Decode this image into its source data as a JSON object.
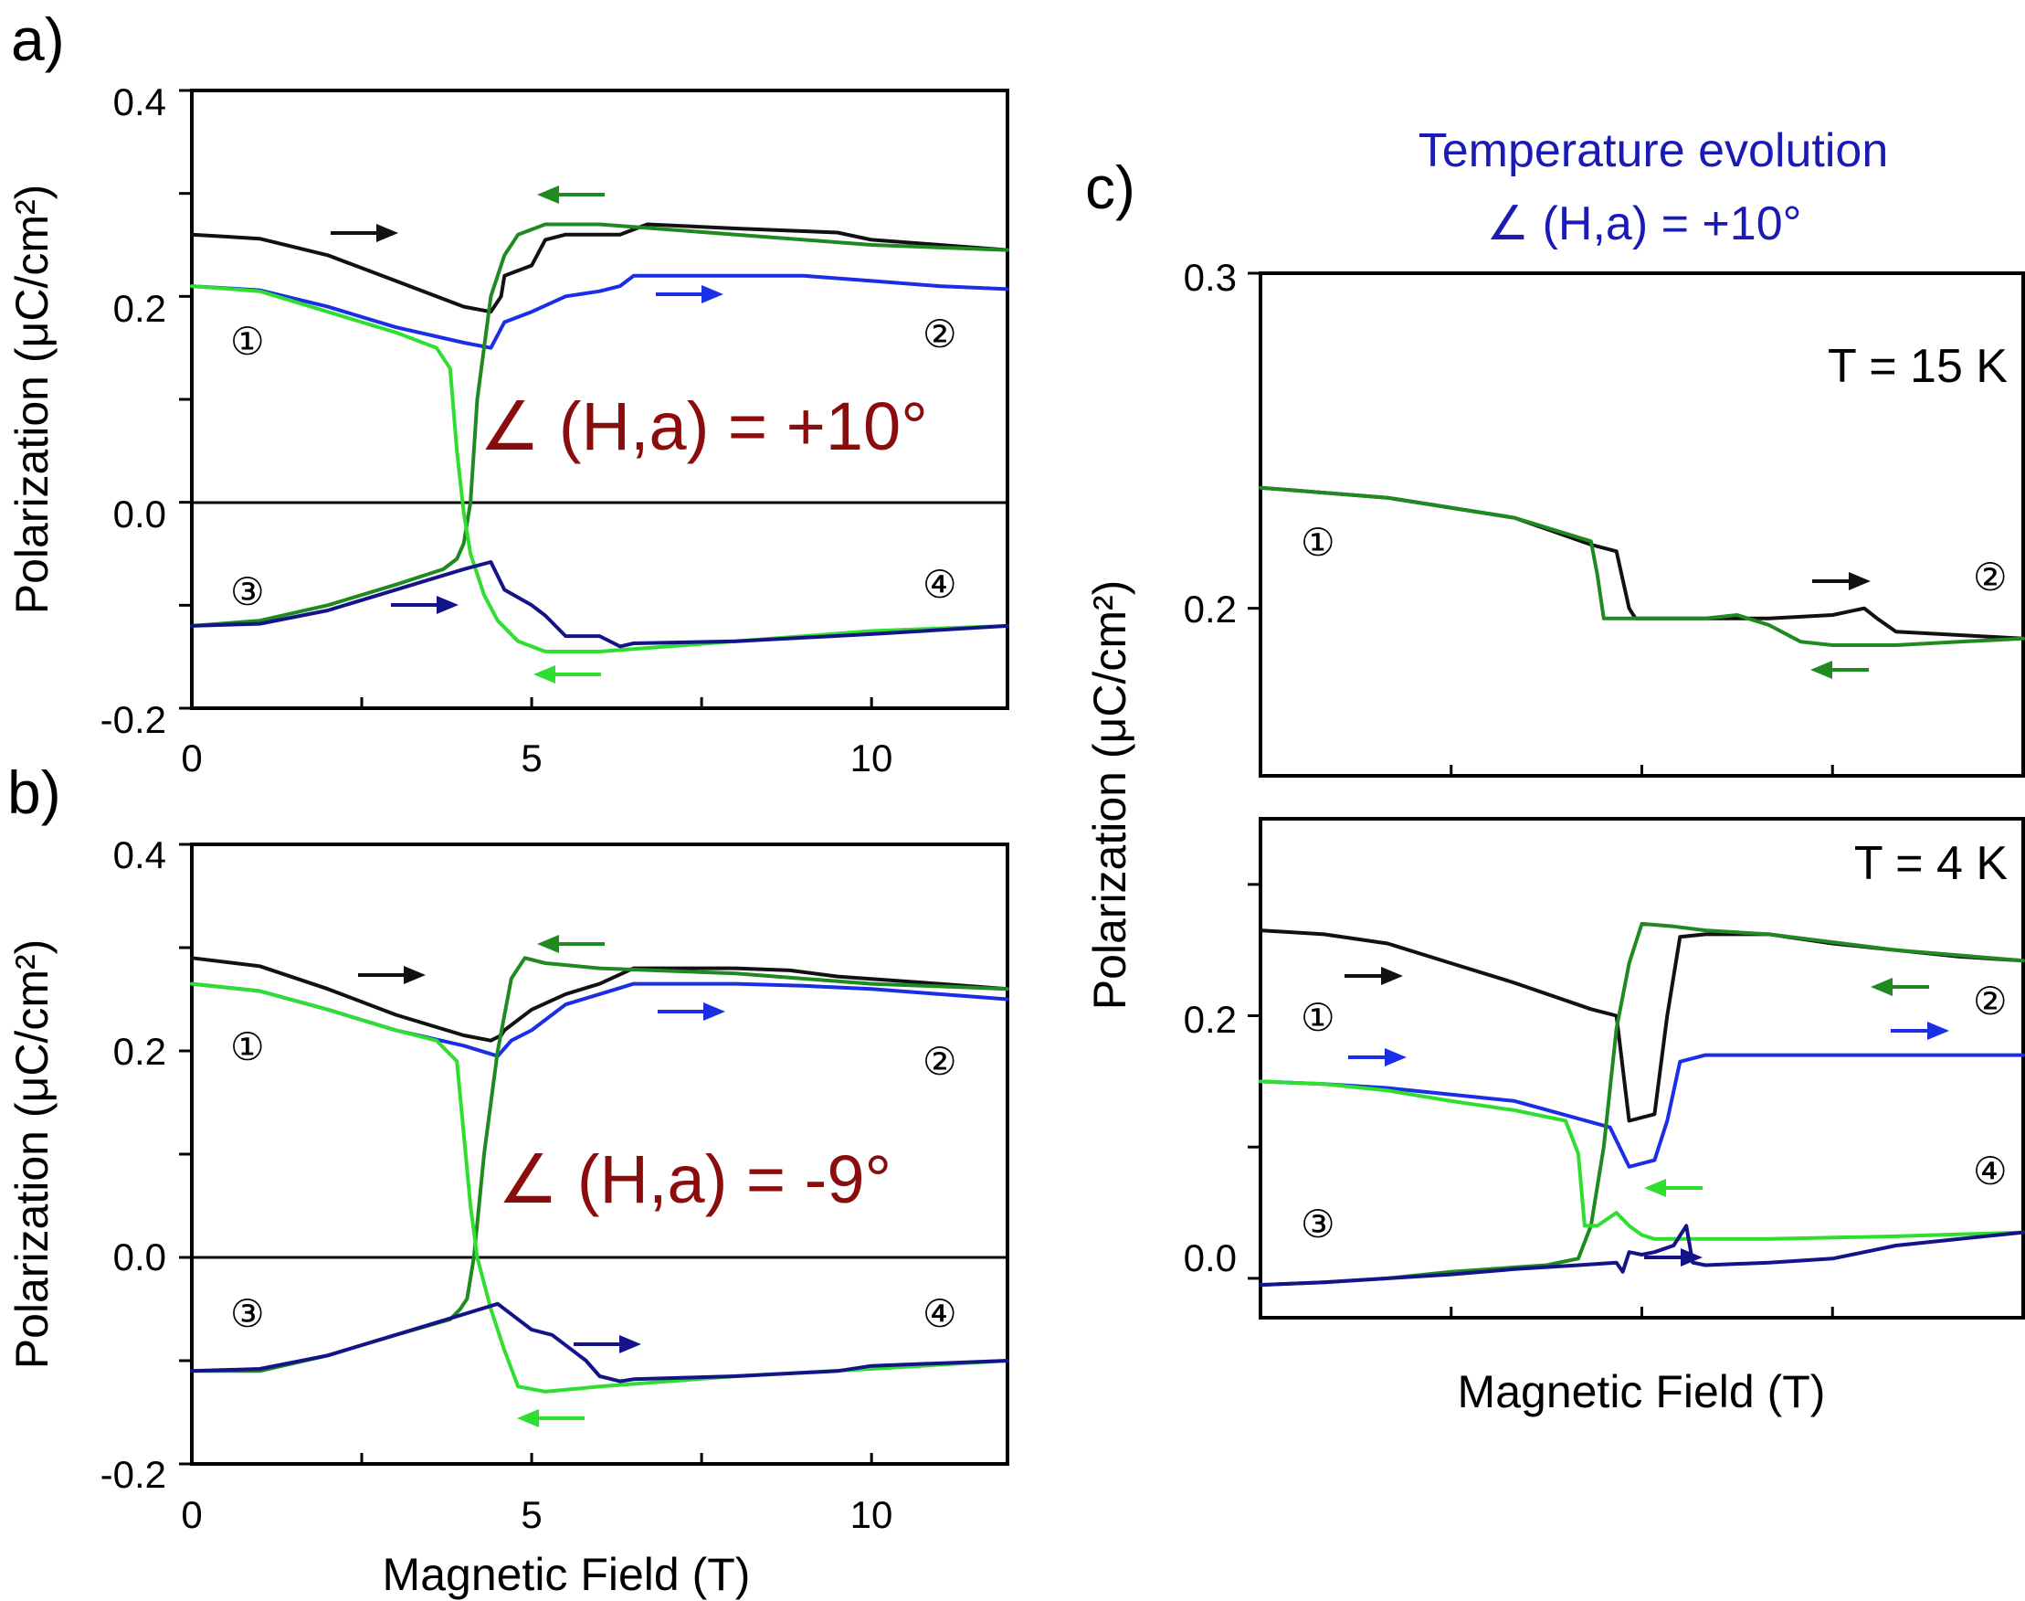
{
  "colors": {
    "black": "#111111",
    "blue": "#1a2ee6",
    "navy": "#14148a",
    "dark_green": "#1f8a1f",
    "light_green": "#2fdf2f",
    "angle_text": "#8b0c0c",
    "blue_text": "#1a1ab4"
  },
  "chart_data": [
    {
      "panel": "a)",
      "type": "line",
      "xlabel": "",
      "ylabel": "Polarization (μC/cm²)",
      "xlim": [
        0,
        12
      ],
      "ylim": [
        -0.2,
        0.4
      ],
      "xticks": [
        "0",
        "5",
        "10"
      ],
      "yticks": [
        "-0.2",
        "0.0",
        "0.2",
        "0.4"
      ],
      "grid": false,
      "annotation": "∠ (H,a) = +10°",
      "markers": [
        "①",
        "②",
        "③",
        "④"
      ],
      "series": [
        {
          "color": "black",
          "x": [
            0,
            1,
            2,
            3,
            4,
            4.4,
            4.55,
            4.6,
            5.0,
            5.2,
            5.5,
            6.3,
            6.5,
            6.7,
            8,
            9.5,
            10,
            11,
            12
          ],
          "y": [
            0.26,
            0.256,
            0.24,
            0.215,
            0.19,
            0.185,
            0.2,
            0.22,
            0.23,
            0.255,
            0.26,
            0.26,
            0.265,
            0.27,
            0.266,
            0.262,
            0.255,
            0.25,
            0.245
          ]
        },
        {
          "color": "blue",
          "x": [
            0,
            1,
            2,
            3,
            4,
            4.4,
            4.6,
            5.0,
            5.5,
            6.0,
            6.3,
            6.5,
            8,
            9,
            10,
            11,
            12
          ],
          "y": [
            0.21,
            0.206,
            0.19,
            0.17,
            0.155,
            0.15,
            0.175,
            0.185,
            0.2,
            0.205,
            0.21,
            0.22,
            0.22,
            0.22,
            0.215,
            0.21,
            0.207
          ]
        },
        {
          "color": "dark_green",
          "x": [
            12,
            10,
            8,
            6,
            5.2,
            4.8,
            4.6,
            4.4,
            4.2,
            4.1,
            4.0,
            3.9,
            3.7,
            3.0,
            2.0,
            1.0,
            0
          ],
          "y": [
            0.245,
            0.25,
            0.26,
            0.27,
            0.27,
            0.26,
            0.24,
            0.2,
            0.1,
            0.0,
            -0.04,
            -0.055,
            -0.065,
            -0.08,
            -0.1,
            -0.115,
            -0.12
          ]
        },
        {
          "color": "light_green",
          "x": [
            0,
            1,
            2,
            3,
            3.6,
            3.8,
            3.9,
            4.0,
            4.1,
            4.3,
            4.5,
            4.8,
            5.2,
            6,
            8,
            10,
            12
          ],
          "y": [
            0.21,
            0.205,
            0.185,
            0.165,
            0.15,
            0.13,
            0.05,
            -0.01,
            -0.05,
            -0.09,
            -0.115,
            -0.135,
            -0.145,
            -0.145,
            -0.135,
            -0.125,
            -0.12
          ]
        },
        {
          "color": "navy",
          "x": [
            0,
            1,
            2,
            3,
            4,
            4.4,
            4.6,
            5.0,
            5.2,
            5.5,
            6.0,
            6.3,
            6.5,
            8,
            10,
            12
          ],
          "y": [
            -0.12,
            -0.118,
            -0.105,
            -0.085,
            -0.065,
            -0.058,
            -0.085,
            -0.1,
            -0.11,
            -0.13,
            -0.13,
            -0.14,
            -0.137,
            -0.135,
            -0.128,
            -0.12
          ]
        }
      ]
    },
    {
      "panel": "b)",
      "type": "line",
      "xlabel": "Magnetic Field (T)",
      "ylabel": "Polarization (μC/cm²)",
      "xlim": [
        0,
        12
      ],
      "ylim": [
        -0.2,
        0.4
      ],
      "xticks": [
        "0",
        "5",
        "10"
      ],
      "yticks": [
        "-0.2",
        "0.0",
        "0.2",
        "0.4"
      ],
      "grid": false,
      "annotation": "∠ (H,a) = -9°",
      "markers": [
        "①",
        "②",
        "③",
        "④"
      ],
      "series": [
        {
          "color": "black",
          "x": [
            0,
            1,
            2,
            3,
            4,
            4.4,
            4.55,
            4.6,
            5.0,
            5.5,
            6.0,
            6.5,
            8,
            8.8,
            9.5,
            11,
            12
          ],
          "y": [
            0.29,
            0.282,
            0.26,
            0.235,
            0.215,
            0.21,
            0.215,
            0.22,
            0.24,
            0.255,
            0.265,
            0.28,
            0.28,
            0.278,
            0.272,
            0.265,
            0.26
          ]
        },
        {
          "color": "blue",
          "x": [
            0,
            1,
            2,
            3,
            4,
            4.5,
            4.7,
            5.0,
            5.5,
            6.0,
            6.5,
            8,
            9,
            10,
            11,
            12
          ],
          "y": [
            0.265,
            0.258,
            0.24,
            0.22,
            0.205,
            0.195,
            0.21,
            0.22,
            0.245,
            0.255,
            0.265,
            0.265,
            0.263,
            0.26,
            0.255,
            0.25
          ]
        },
        {
          "color": "dark_green",
          "x": [
            12,
            10,
            8,
            6,
            5.2,
            4.9,
            4.7,
            4.5,
            4.3,
            4.15,
            4.05,
            3.95,
            3.8,
            3.0,
            2.0,
            1.0,
            0
          ],
          "y": [
            0.26,
            0.265,
            0.275,
            0.28,
            0.285,
            0.29,
            0.27,
            0.2,
            0.1,
            0.0,
            -0.04,
            -0.05,
            -0.06,
            -0.075,
            -0.095,
            -0.11,
            -0.11
          ]
        },
        {
          "color": "light_green",
          "x": [
            0,
            1,
            2,
            3,
            3.6,
            3.9,
            4.0,
            4.1,
            4.2,
            4.4,
            4.6,
            4.8,
            5.2,
            6,
            8,
            10,
            12
          ],
          "y": [
            0.265,
            0.258,
            0.24,
            0.22,
            0.21,
            0.19,
            0.12,
            0.05,
            0.0,
            -0.05,
            -0.09,
            -0.125,
            -0.13,
            -0.125,
            -0.115,
            -0.108,
            -0.1
          ]
        },
        {
          "color": "navy",
          "x": [
            0,
            1,
            2,
            3,
            4,
            4.5,
            4.7,
            5.0,
            5.3,
            5.6,
            5.8,
            6.0,
            6.3,
            6.5,
            8,
            9.5,
            10,
            12
          ],
          "y": [
            -0.11,
            -0.108,
            -0.095,
            -0.075,
            -0.055,
            -0.045,
            -0.055,
            -0.07,
            -0.075,
            -0.09,
            -0.1,
            -0.115,
            -0.12,
            -0.118,
            -0.115,
            -0.11,
            -0.105,
            -0.1
          ]
        }
      ]
    },
    {
      "panel": "c)",
      "type": "line",
      "title": "Temperature evolution",
      "subtitle": "∠ (H,a) = +10°",
      "xlabel": "Magnetic Field (T)",
      "ylabel": "Polarization (μC/cm²)",
      "grid": false,
      "subplots": [
        {
          "label": "T = 15 K",
          "xlim": [
            0,
            12
          ],
          "ylim": [
            0.15,
            0.3
          ],
          "yticks": [
            "0.2",
            "0.3"
          ],
          "markers": [
            "①",
            "②"
          ],
          "series": [
            {
              "color": "black",
              "x": [
                0,
                2,
                4,
                5.2,
                5.6,
                5.8,
                5.9,
                6,
                7,
                8,
                9,
                9.5,
                9.7,
                10,
                11,
                12
              ],
              "y": [
                0.236,
                0.233,
                0.227,
                0.219,
                0.217,
                0.2,
                0.197,
                0.197,
                0.197,
                0.197,
                0.198,
                0.2,
                0.197,
                0.193,
                0.192,
                0.191
              ]
            },
            {
              "color": "dark_green",
              "x": [
                12,
                11,
                10,
                9,
                8.5,
                8,
                7.5,
                7,
                6,
                5.4,
                5.3,
                5.2,
                4,
                2,
                0
              ],
              "y": [
                0.191,
                0.19,
                0.189,
                0.189,
                0.19,
                0.195,
                0.198,
                0.197,
                0.197,
                0.197,
                0.21,
                0.22,
                0.227,
                0.233,
                0.236
              ]
            }
          ]
        },
        {
          "label": "T = 4 K",
          "xlim": [
            0,
            12
          ],
          "ylim": [
            -0.03,
            0.35
          ],
          "yticks": [
            "0.0",
            "0.2"
          ],
          "markers": [
            "①",
            "②",
            "③",
            "④"
          ],
          "series": [
            {
              "color": "black",
              "x": [
                0,
                1,
                2,
                3,
                4,
                5.2,
                5.6,
                5.8,
                6.2,
                6.4,
                6.6,
                7,
                8,
                9,
                10,
                11,
                12
              ],
              "y": [
                0.265,
                0.262,
                0.255,
                0.24,
                0.225,
                0.205,
                0.2,
                0.12,
                0.125,
                0.2,
                0.26,
                0.262,
                0.262,
                0.255,
                0.25,
                0.245,
                0.242
              ]
            },
            {
              "color": "blue",
              "x": [
                0,
                1,
                2,
                3,
                4,
                5.5,
                5.8,
                6.2,
                6.4,
                6.6,
                7,
                8,
                9,
                10,
                11,
                12
              ],
              "y": [
                0.15,
                0.148,
                0.145,
                0.14,
                0.135,
                0.115,
                0.085,
                0.09,
                0.12,
                0.165,
                0.17,
                0.17,
                0.17,
                0.17,
                0.17,
                0.17
              ]
            },
            {
              "color": "dark_green",
              "x": [
                12,
                10,
                8,
                7,
                6.5,
                6.0,
                5.8,
                5.6,
                5.4,
                5.2,
                5.0,
                4.5,
                3,
                2,
                1,
                0
              ],
              "y": [
                0.242,
                0.25,
                0.262,
                0.265,
                0.268,
                0.27,
                0.24,
                0.19,
                0.1,
                0.04,
                0.015,
                0.01,
                0.005,
                0.0,
                -0.003,
                -0.005
              ]
            },
            {
              "color": "light_green",
              "x": [
                0,
                1,
                2,
                3,
                4,
                4.8,
                5.0,
                5.1,
                5.3,
                5.6,
                5.8,
                6.0,
                6.2,
                6.5,
                7,
                8,
                10,
                12
              ],
              "y": [
                0.15,
                0.148,
                0.143,
                0.135,
                0.128,
                0.12,
                0.095,
                0.04,
                0.04,
                0.05,
                0.04,
                0.033,
                0.03,
                0.03,
                0.03,
                0.03,
                0.032,
                0.035
              ]
            },
            {
              "color": "navy",
              "x": [
                0,
                1,
                2,
                3,
                4,
                5,
                5.6,
                5.7,
                5.8,
                6.0,
                6.2,
                6.5,
                6.7,
                6.8,
                7,
                8,
                9,
                9.5,
                10,
                11,
                12
              ],
              "y": [
                -0.005,
                -0.003,
                0.0,
                0.003,
                0.007,
                0.01,
                0.012,
                0.005,
                0.02,
                0.018,
                0.02,
                0.025,
                0.04,
                0.012,
                0.01,
                0.012,
                0.015,
                0.02,
                0.025,
                0.03,
                0.035
              ]
            }
          ]
        }
      ]
    }
  ]
}
